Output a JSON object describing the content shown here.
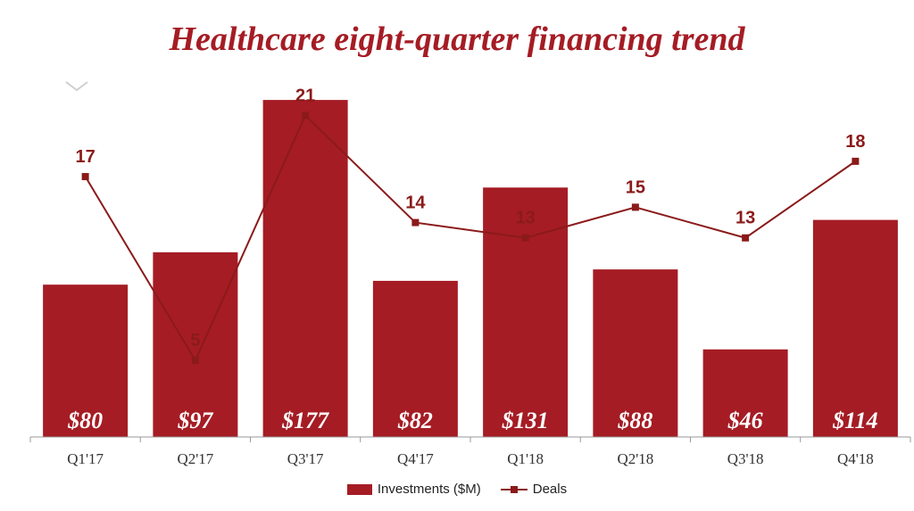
{
  "colors": {
    "bar": "#a51c24",
    "line": "#8b1a1a",
    "bar_label": "#ffffff",
    "axis": "#999999",
    "title": "#a51c24"
  },
  "icons": {
    "collapse": "chevron-down-icon"
  },
  "chart_data": {
    "type": "bar",
    "title": "Healthcare eight-quarter financing trend",
    "categories": [
      "Q1'17",
      "Q2'17",
      "Q3'17",
      "Q4'17",
      "Q1'18",
      "Q2'18",
      "Q3'18",
      "Q4'18"
    ],
    "series": [
      {
        "name": "Investments ($M)",
        "type": "bar",
        "values": [
          80,
          97,
          177,
          82,
          131,
          88,
          46,
          114
        ],
        "labels": [
          "$80",
          "$97",
          "$177",
          "$82",
          "$131",
          "$88",
          "$46",
          "$114"
        ]
      },
      {
        "name": "Deals",
        "type": "line",
        "values": [
          17,
          5,
          21,
          14,
          13,
          15,
          13,
          18
        ]
      }
    ],
    "bar_ylim": [
      0,
      185
    ],
    "line_ylim": [
      0,
      23
    ],
    "legend_position": "bottom",
    "grid": false
  }
}
